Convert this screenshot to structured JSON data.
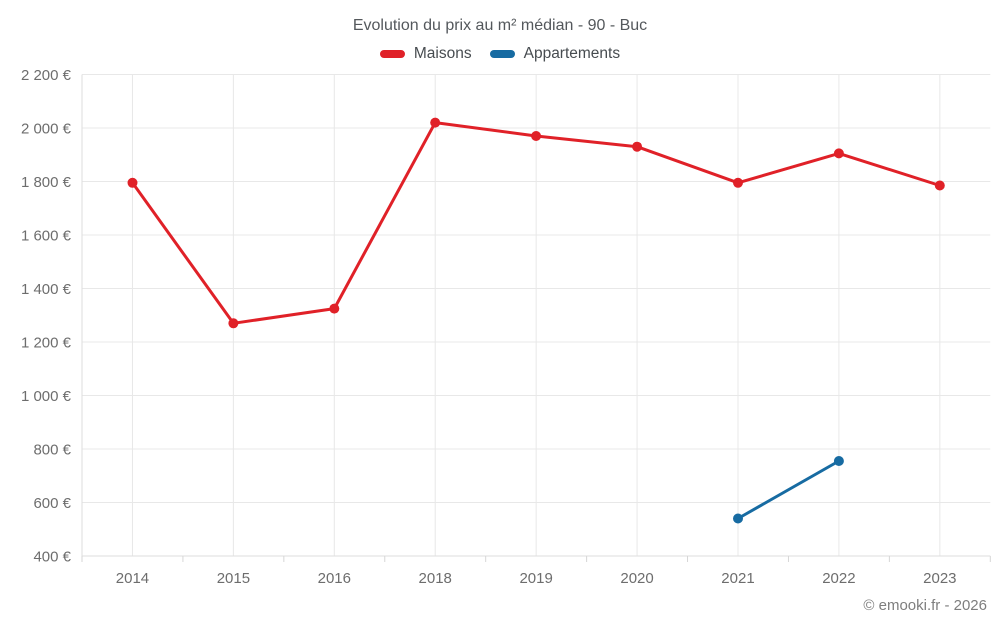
{
  "header": {
    "title": "Evolution du prix au m² médian - 90 - Buc"
  },
  "footer": {
    "credit": "© emooki.fr - 2026"
  },
  "colors": {
    "maisons": "#e02128",
    "appartements": "#176ba2",
    "gridline": "#e8e8e8",
    "axis_line": "#dedede",
    "tick_mark": "#d6d6d6",
    "tick_label": "#6d6d6d"
  },
  "chart_data": {
    "type": "line",
    "title": "Evolution du prix au m² médian - 90 - Buc",
    "categories": [
      "2014",
      "2015",
      "2016",
      "2018",
      "2019",
      "2020",
      "2021",
      "2022",
      "2023"
    ],
    "series": [
      {
        "name": "Maisons",
        "color": "#e02128",
        "values": [
          1795,
          1270,
          1325,
          2020,
          1970,
          1930,
          1795,
          1905,
          1785
        ]
      },
      {
        "name": "Appartements",
        "color": "#176ba2",
        "values": [
          null,
          null,
          null,
          null,
          null,
          null,
          540,
          755,
          null
        ]
      }
    ],
    "xlabel": "",
    "ylabel": "",
    "y_axis": {
      "min": 400,
      "max": 2200,
      "tick_step": 200,
      "unit": "€",
      "tick_labels": [
        "400 €",
        "600 €",
        "800 €",
        "1 000 €",
        "1 200 €",
        "1 400 €",
        "1 600 €",
        "1 800 €",
        "2 000 €",
        "2 200 €"
      ]
    },
    "grid": true,
    "legend_position": "top",
    "marker_radius": 5,
    "line_width": 3
  }
}
